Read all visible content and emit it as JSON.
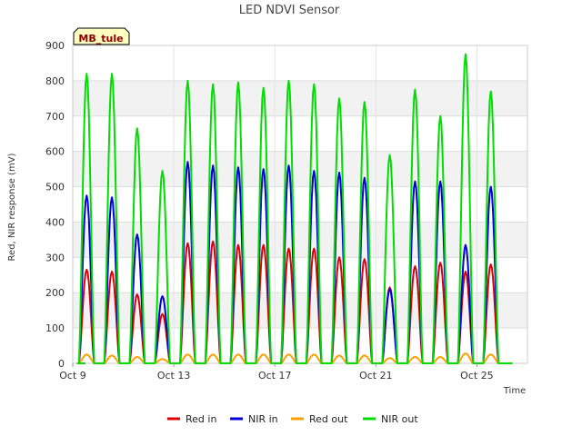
{
  "chart_data": {
    "type": "line",
    "title": "LED NDVI Sensor",
    "xlabel": "Time",
    "ylabel": "Red, NIR response (mV)",
    "station_label": "MB_tule",
    "ylim": [
      0,
      900
    ],
    "yticks": [
      0,
      100,
      200,
      300,
      400,
      500,
      600,
      700,
      800,
      900
    ],
    "xlim_day": [
      9,
      27
    ],
    "xticks": [
      {
        "day": 9,
        "label": "Oct 9"
      },
      {
        "day": 13,
        "label": "Oct 13"
      },
      {
        "day": 17,
        "label": "Oct 17"
      },
      {
        "day": 21,
        "label": "Oct 21"
      },
      {
        "day": 25,
        "label": "Oct 25"
      }
    ],
    "grid": true,
    "legend_position": "bottom",
    "daily_peak_day": [
      9.55,
      10.55,
      11.55,
      12.55,
      13.55,
      14.55,
      15.55,
      16.55,
      17.55,
      18.55,
      19.55,
      20.55,
      21.55,
      22.55,
      23.55,
      24.55,
      25.55
    ],
    "series": [
      {
        "name": "Red in",
        "color": "#dd0000",
        "peaks": [
          265,
          260,
          195,
          140,
          340,
          345,
          335,
          335,
          325,
          325,
          300,
          295,
          215,
          275,
          285,
          260,
          280
        ]
      },
      {
        "name": "NIR in",
        "color": "#0000dd",
        "peaks": [
          475,
          470,
          365,
          190,
          570,
          560,
          555,
          550,
          560,
          545,
          540,
          525,
          210,
          515,
          515,
          335,
          500
        ]
      },
      {
        "name": "Red out",
        "color": "#ffa000",
        "peaks": [
          25,
          22,
          18,
          12,
          25,
          25,
          25,
          25,
          25,
          25,
          22,
          22,
          15,
          18,
          18,
          28,
          25
        ]
      },
      {
        "name": "NIR out",
        "color": "#00dd00",
        "peaks": [
          820,
          820,
          665,
          545,
          800,
          790,
          795,
          780,
          800,
          790,
          750,
          740,
          590,
          775,
          700,
          875,
          770
        ]
      }
    ]
  }
}
